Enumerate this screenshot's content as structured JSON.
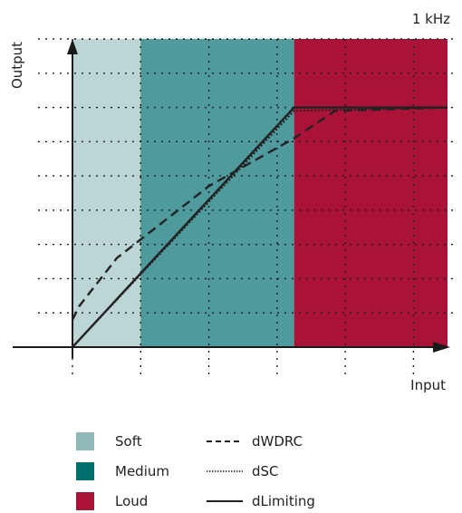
{
  "chart_data": {
    "type": "line",
    "title": "1 kHz",
    "xlabel": "Input",
    "ylabel": "Output",
    "xlim": [
      0,
      5.5
    ],
    "ylim": [
      0,
      9
    ],
    "x_gridlines": [
      0,
      1,
      2,
      3,
      4,
      5
    ],
    "y_gridlines": [
      1,
      2,
      3,
      4,
      5,
      6,
      7,
      8,
      9
    ],
    "grid": true,
    "regions": [
      {
        "name": "Soft",
        "x": [
          0,
          1
        ],
        "color": "#bcd6d6"
      },
      {
        "name": "Medium",
        "x": [
          1,
          3.25
        ],
        "color": "#4e9a9c"
      },
      {
        "name": "Loud",
        "x": [
          3.25,
          5.5
        ],
        "color": "#ab1238"
      }
    ],
    "series": [
      {
        "name": "dWDRC",
        "style": "dashed",
        "color": "#222222",
        "x": [
          0,
          0.1,
          0.65,
          2.0,
          3.25,
          3.85,
          5.5
        ],
        "y": [
          0.8,
          1.2,
          2.6,
          4.7,
          6.1,
          6.9,
          7.0
        ]
      },
      {
        "name": "dSC",
        "style": "dotted",
        "color": "#222222",
        "x": [
          0,
          3.25,
          5.5
        ],
        "y": [
          0,
          6.9,
          7.0
        ]
      },
      {
        "name": "dLimiting",
        "style": "solid",
        "color": "#222222",
        "x": [
          0,
          3.25,
          5.5
        ],
        "y": [
          0,
          7.0,
          7.0
        ]
      }
    ]
  },
  "legend": {
    "regions": [
      {
        "label": "Soft",
        "color": "#8fb8b9"
      },
      {
        "label": "Medium",
        "color": "#00706e"
      },
      {
        "label": "Loud",
        "color": "#ab1238"
      }
    ],
    "lines": [
      {
        "label": "dWDRC",
        "style": "dashed"
      },
      {
        "label": "dSC",
        "style": "dotted"
      },
      {
        "label": "dLimiting",
        "style": "solid"
      }
    ]
  }
}
